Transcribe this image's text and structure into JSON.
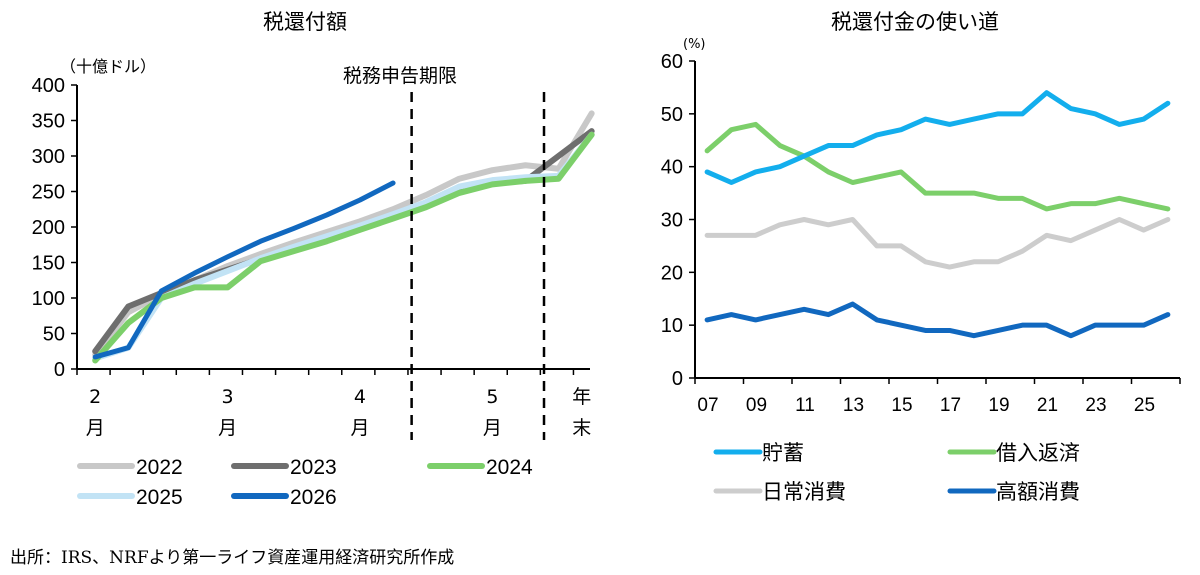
{
  "chart_data": [
    {
      "type": "line",
      "title": "税還付額",
      "ylabel": "（十億ドル）",
      "xlabel": "",
      "ylim": [
        0,
        400
      ],
      "yticks": [
        "0",
        "50",
        "100",
        "150",
        "200",
        "250",
        "300",
        "350",
        "400"
      ],
      "ytick_values": [
        0,
        50,
        100,
        150,
        200,
        250,
        300,
        350,
        400
      ],
      "x_month_labels": [
        {
          "num": "2",
          "unit": "月",
          "index": 0
        },
        {
          "num": "3",
          "unit": "月",
          "index": 4
        },
        {
          "num": "4",
          "unit": "月",
          "index": 8
        },
        {
          "num": "5",
          "unit": "月",
          "index": 12
        },
        {
          "num": "年",
          "unit": "末",
          "index": 14.7
        }
      ],
      "annotation": "税務申告期限",
      "deadline_index": 9.5,
      "yearend_index": 13.5,
      "grid": false,
      "legend_position": "bottom",
      "series": [
        {
          "name": "2022",
          "color": "#c8c8c8",
          "values": [
            20,
            80,
            105,
            125,
            145,
            162,
            178,
            193,
            208,
            225,
            245,
            268,
            280,
            287,
            282,
            360
          ]
        },
        {
          "name": "2023",
          "color": "#6e6e6e",
          "values": [
            25,
            88,
            107,
            125,
            140,
            155,
            168,
            182,
            198,
            214,
            232,
            253,
            262,
            265,
            335
          ]
        },
        {
          "name": "2024",
          "color": "#7ccf6a",
          "values": [
            12,
            65,
            100,
            115,
            115,
            152,
            166,
            180,
            196,
            212,
            228,
            248,
            260,
            265,
            268,
            330
          ]
        },
        {
          "name": "2025",
          "color": "#c2e3f5",
          "values": [
            15,
            30,
            100,
            120,
            138,
            156,
            172,
            187,
            202,
            218,
            235,
            257,
            266,
            270,
            272,
            330
          ]
        },
        {
          "name": "2026",
          "color": "#1168bf",
          "values": [
            17,
            30,
            110,
            135,
            158,
            180,
            198,
            217,
            238,
            262
          ]
        }
      ]
    },
    {
      "type": "line",
      "title": "税還付金の使い道",
      "ylabel": "(%)",
      "xlabel": "",
      "ylim": [
        0,
        60
      ],
      "yticks": [
        "0",
        "10",
        "20",
        "30",
        "40",
        "50",
        "60"
      ],
      "ytick_values": [
        0,
        10,
        20,
        30,
        40,
        50,
        60
      ],
      "x": [
        "07",
        "08",
        "09",
        "10",
        "11",
        "12",
        "13",
        "14",
        "15",
        "16",
        "17",
        "18",
        "19",
        "20",
        "21",
        "22",
        "23",
        "24",
        "25",
        "26"
      ],
      "xtick_labels": [
        "07",
        "09",
        "11",
        "13",
        "15",
        "17",
        "19",
        "21",
        "23",
        "25"
      ],
      "grid": false,
      "legend_position": "bottom",
      "series": [
        {
          "name": "貯蓄",
          "color": "#13aeed",
          "values": [
            39,
            37,
            39,
            40,
            42,
            44,
            44,
            46,
            47,
            49,
            48,
            49,
            50,
            50,
            54,
            51,
            50,
            48,
            49,
            52
          ]
        },
        {
          "name": "借入返済",
          "color": "#7ccf6a",
          "values": [
            43,
            47,
            48,
            44,
            42,
            39,
            37,
            38,
            39,
            35,
            35,
            35,
            34,
            34,
            32,
            33,
            33,
            34,
            33,
            32
          ]
        },
        {
          "name": "日常消費",
          "color": "#cdcdcd",
          "values": [
            27,
            27,
            27,
            29,
            30,
            29,
            30,
            25,
            25,
            22,
            21,
            22,
            22,
            24,
            27,
            26,
            28,
            30,
            28,
            30
          ]
        },
        {
          "name": "高額消費",
          "color": "#1168bf",
          "values": [
            11,
            12,
            11,
            12,
            13,
            12,
            14,
            11,
            10,
            9,
            9,
            8,
            9,
            10,
            10,
            8,
            10,
            10,
            10,
            12
          ]
        }
      ]
    }
  ],
  "source": "出所：IRS、NRFより第一ライフ資産運用経済研究所作成"
}
